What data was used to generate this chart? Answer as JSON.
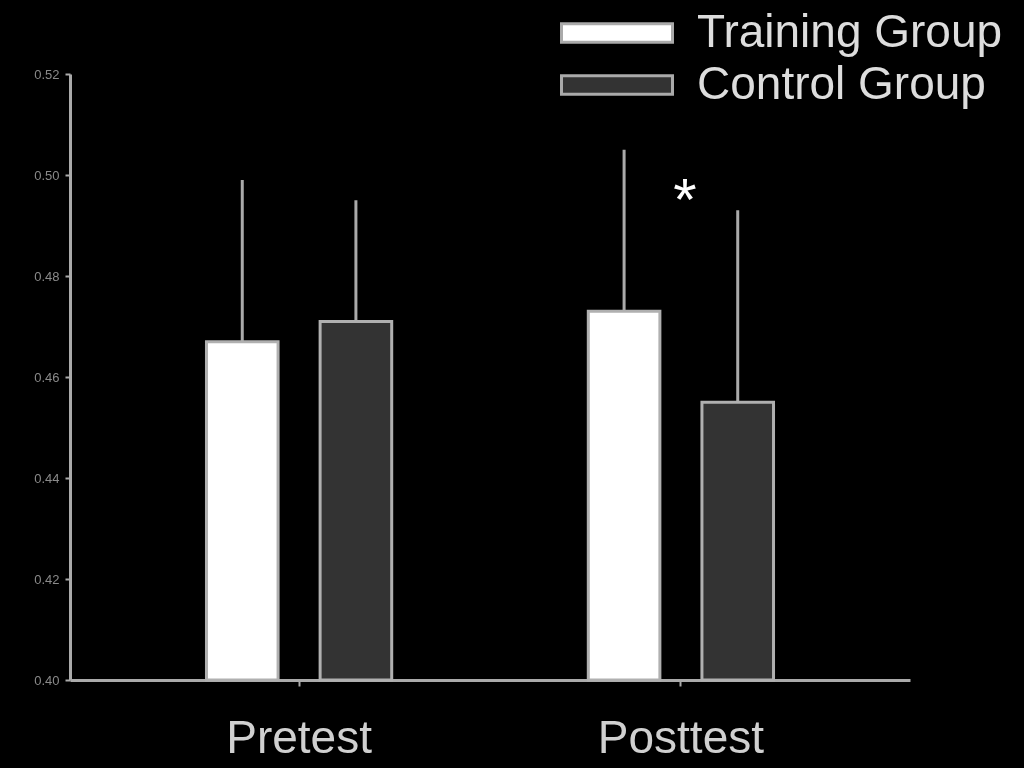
{
  "chart_data": {
    "type": "bar",
    "categories": [
      "Pretest",
      "Posttest"
    ],
    "series": [
      {
        "name": "Training Group",
        "color": "#ffffff",
        "values": [
          0.467,
          0.473
        ],
        "errors": [
          0.032,
          0.032
        ]
      },
      {
        "name": "Control Group",
        "color": "#333333",
        "values": [
          0.471,
          0.455
        ],
        "errors": [
          0.024,
          0.038
        ]
      }
    ],
    "ylim": [
      0.4,
      0.52
    ],
    "yticks": [
      {
        "value": 0.4,
        "label": "0.40"
      },
      {
        "value": 0.42,
        "label": "0.42"
      },
      {
        "value": 0.44,
        "label": "0.44"
      },
      {
        "value": 0.46,
        "label": "0.46"
      },
      {
        "value": 0.48,
        "label": "0.48"
      },
      {
        "value": 0.5,
        "label": "0.50"
      },
      {
        "value": 0.52,
        "label": "0.52"
      }
    ],
    "legend": "top right",
    "annotations": [
      "*"
    ]
  }
}
